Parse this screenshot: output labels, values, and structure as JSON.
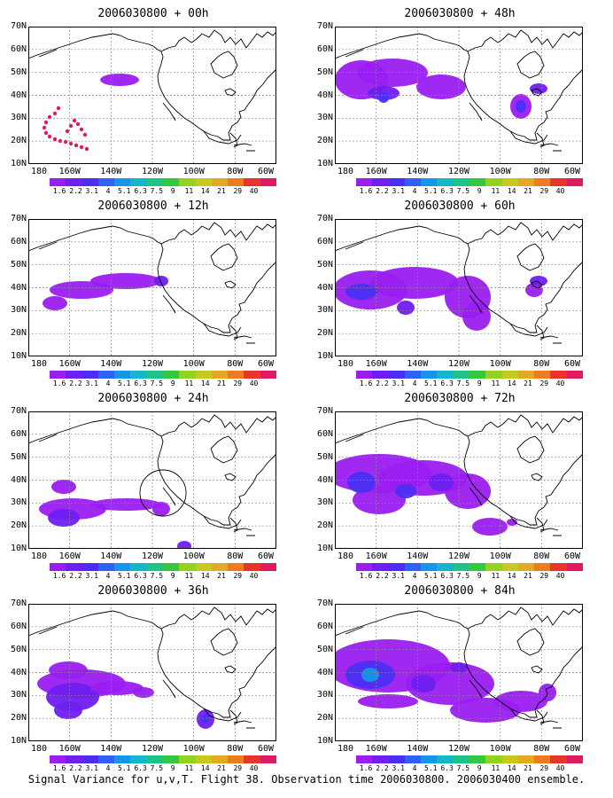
{
  "colorbar": {
    "labels": [
      "1.6",
      "2.2",
      "3.1",
      "4",
      "5.1",
      "6.3",
      "7.5",
      "9",
      "11",
      "14",
      "21",
      "29",
      "40"
    ],
    "colors": [
      "#9a1ef0",
      "#6f1ff0",
      "#4a2ff2",
      "#2f62f4",
      "#1496ea",
      "#12b7c8",
      "#1ec38a",
      "#33c840",
      "#93d31f",
      "#c8c81e",
      "#e5a823",
      "#ee7b20",
      "#e8332f",
      "#e01a60"
    ]
  },
  "axes": {
    "y_labels": [
      "70N",
      "60N",
      "50N",
      "40N",
      "30N",
      "20N",
      "10N"
    ],
    "x_labels": [
      "180",
      "160W",
      "140W",
      "120W",
      "100W",
      "80W",
      "60W"
    ]
  },
  "panels": [
    {
      "title": "2006030800 + 00h",
      "shapes": "p00"
    },
    {
      "title": "2006030800 + 12h",
      "shapes": "p12"
    },
    {
      "title": "2006030800 + 24h",
      "shapes": "p24"
    },
    {
      "title": "2006030800 + 36h",
      "shapes": "p36"
    },
    {
      "title": "2006030800 + 48h",
      "shapes": "p48"
    },
    {
      "title": "2006030800 + 60h",
      "shapes": "p60"
    },
    {
      "title": "2006030800 + 72h",
      "shapes": "p72"
    },
    {
      "title": "2006030800 + 84h",
      "shapes": "p84"
    }
  ],
  "footer": "Signal Variance for u,v,T. Flight 38. Observation time 2006030800. 2006030400 ensemble."
}
